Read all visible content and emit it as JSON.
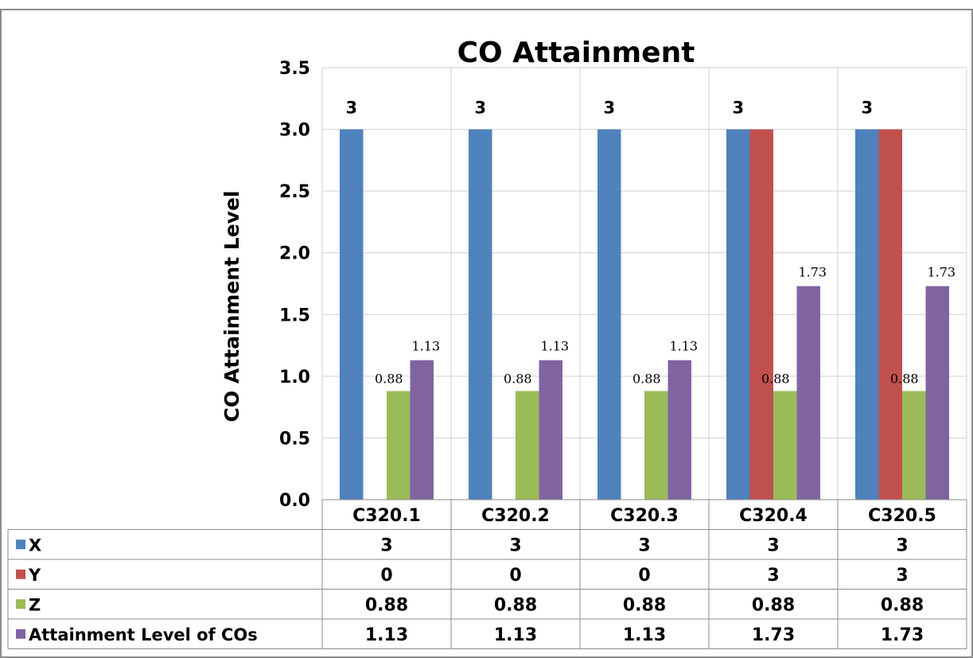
{
  "chart_data": {
    "type": "bar",
    "title": "CO Attainment",
    "xlabel": "",
    "ylabel": "CO Attainment Level",
    "ylim": [
      0,
      3.5
    ],
    "yticks": [
      "0.0",
      "0.5",
      "1.0",
      "1.5",
      "2.0",
      "2.5",
      "3.0",
      "3.5"
    ],
    "grid": true,
    "legend": "data-table-left",
    "categories": [
      "C320.1",
      "C320.2",
      "C320.3",
      "C320.4",
      "C320.5"
    ],
    "series": [
      {
        "name": "X",
        "color": "#4F81BD",
        "values": [
          3,
          3,
          3,
          3,
          3
        ],
        "table_values": [
          "3",
          "3",
          "3",
          "3",
          "3"
        ],
        "data_labels": [
          "3",
          "3",
          "3",
          "3",
          "3"
        ]
      },
      {
        "name": "Y",
        "color": "#C0504D",
        "values": [
          0,
          0,
          0,
          3,
          3
        ],
        "table_values": [
          "0",
          "0",
          "0",
          "3",
          "3"
        ],
        "data_labels": [
          "",
          "",
          "",
          "",
          ""
        ]
      },
      {
        "name": "Z",
        "color": "#9BBB59",
        "values": [
          0.88,
          0.88,
          0.88,
          0.88,
          0.88
        ],
        "table_values": [
          "0.88",
          "0.88",
          "0.88",
          "0.88",
          "0.88"
        ],
        "data_labels": [
          "0.88",
          "0.88",
          "0.88",
          "0.88",
          "0.88"
        ]
      },
      {
        "name": "Attainment Level of COs",
        "color": "#8064A2",
        "values": [
          1.13,
          1.13,
          1.13,
          1.73,
          1.73
        ],
        "table_values": [
          "1.13",
          "1.13",
          "1.13",
          "1.73",
          "1.73"
        ],
        "data_labels": [
          "1.13",
          "1.13",
          "1.13",
          "1.73",
          "1.73"
        ]
      }
    ]
  }
}
